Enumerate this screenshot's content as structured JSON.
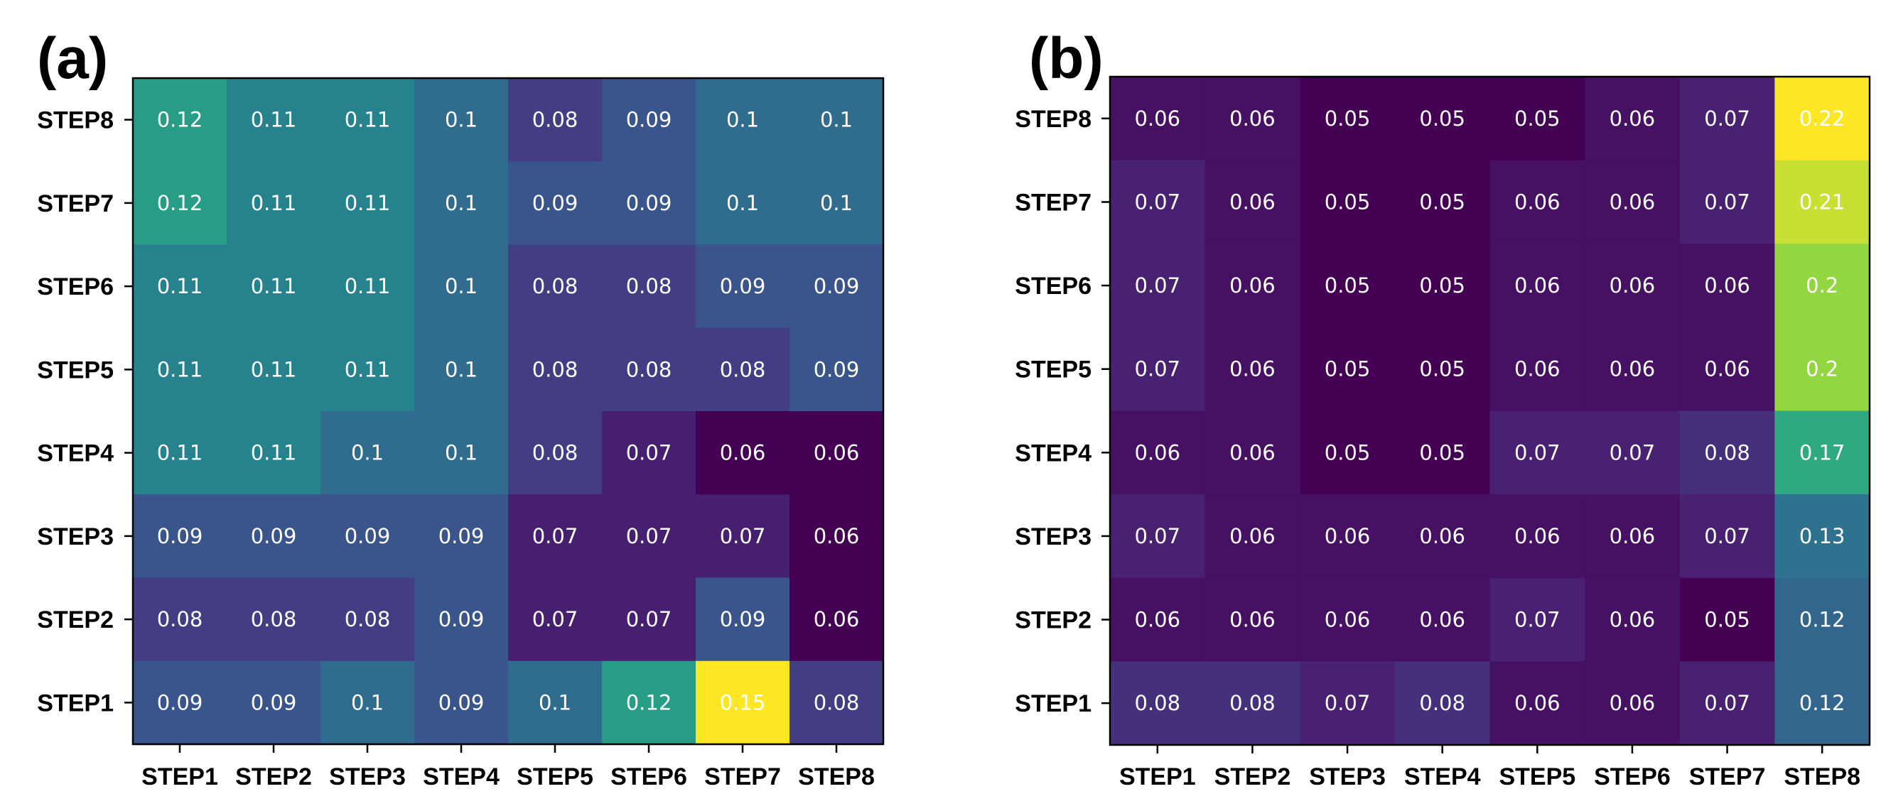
{
  "chart_data": [
    {
      "type": "heatmap",
      "panel_label": "(a)",
      "x_categories": [
        "STEP1",
        "STEP2",
        "STEP3",
        "STEP4",
        "STEP5",
        "STEP6",
        "STEP7",
        "STEP8"
      ],
      "y_categories": [
        "STEP8",
        "STEP7",
        "STEP6",
        "STEP5",
        "STEP4",
        "STEP3",
        "STEP2",
        "STEP1"
      ],
      "colormap": "viridis",
      "color_range": [
        0.06,
        0.15
      ],
      "values": [
        [
          "0.12",
          "0.11",
          "0.11",
          "0.1",
          "0.08",
          "0.09",
          "0.1",
          "0.1"
        ],
        [
          "0.12",
          "0.11",
          "0.11",
          "0.1",
          "0.09",
          "0.09",
          "0.1",
          "0.1"
        ],
        [
          "0.11",
          "0.11",
          "0.11",
          "0.1",
          "0.08",
          "0.08",
          "0.09",
          "0.09"
        ],
        [
          "0.11",
          "0.11",
          "0.11",
          "0.1",
          "0.08",
          "0.08",
          "0.08",
          "0.09"
        ],
        [
          "0.11",
          "0.11",
          "0.1",
          "0.1",
          "0.08",
          "0.07",
          "0.06",
          "0.06"
        ],
        [
          "0.09",
          "0.09",
          "0.09",
          "0.09",
          "0.07",
          "0.07",
          "0.07",
          "0.06"
        ],
        [
          "0.08",
          "0.08",
          "0.08",
          "0.09",
          "0.07",
          "0.07",
          "0.09",
          "0.06"
        ],
        [
          "0.09",
          "0.09",
          "0.1",
          "0.09",
          "0.1",
          "0.12",
          "0.15",
          "0.08"
        ]
      ]
    },
    {
      "type": "heatmap",
      "panel_label": "(b)",
      "x_categories": [
        "STEP1",
        "STEP2",
        "STEP3",
        "STEP4",
        "STEP5",
        "STEP6",
        "STEP7",
        "STEP8"
      ],
      "y_categories": [
        "STEP8",
        "STEP7",
        "STEP6",
        "STEP5",
        "STEP4",
        "STEP3",
        "STEP2",
        "STEP1"
      ],
      "colormap": "viridis",
      "color_range": [
        0.05,
        0.22
      ],
      "values": [
        [
          "0.06",
          "0.06",
          "0.05",
          "0.05",
          "0.05",
          "0.06",
          "0.07",
          "0.22"
        ],
        [
          "0.07",
          "0.06",
          "0.05",
          "0.05",
          "0.06",
          "0.06",
          "0.07",
          "0.21"
        ],
        [
          "0.07",
          "0.06",
          "0.05",
          "0.05",
          "0.06",
          "0.06",
          "0.06",
          "0.2"
        ],
        [
          "0.07",
          "0.06",
          "0.05",
          "0.05",
          "0.06",
          "0.06",
          "0.06",
          "0.2"
        ],
        [
          "0.06",
          "0.06",
          "0.05",
          "0.05",
          "0.07",
          "0.07",
          "0.08",
          "0.17"
        ],
        [
          "0.07",
          "0.06",
          "0.06",
          "0.06",
          "0.06",
          "0.06",
          "0.07",
          "0.13"
        ],
        [
          "0.06",
          "0.06",
          "0.06",
          "0.06",
          "0.07",
          "0.06",
          "0.05",
          "0.12"
        ],
        [
          "0.08",
          "0.08",
          "0.07",
          "0.08",
          "0.06",
          "0.06",
          "0.07",
          "0.12"
        ]
      ]
    }
  ]
}
